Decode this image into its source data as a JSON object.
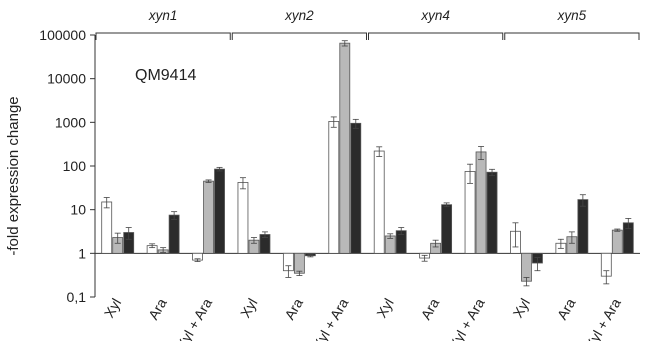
{
  "chart_data": {
    "type": "bar",
    "title": "",
    "ylabel": "-fold expression change",
    "xlabel": "",
    "yscale": "log",
    "ylim": [
      0.1,
      100000
    ],
    "yticks": [
      {
        "value": 0.1,
        "label": "0,1"
      },
      {
        "value": 1,
        "label": "1"
      },
      {
        "value": 10,
        "label": "10"
      },
      {
        "value": 100,
        "label": "100"
      },
      {
        "value": 1000,
        "label": "1000"
      },
      {
        "value": 10000,
        "label": "10000"
      },
      {
        "value": 100000,
        "label": "100000"
      }
    ],
    "grid": false,
    "legend": "none",
    "annotation": "QM9414",
    "series_colors": [
      "#ffffff",
      "#b9b9b9",
      "#2b2b2b"
    ],
    "groups": [
      {
        "name": "xyn1",
        "categories": [
          {
            "label": "Xyl",
            "values": [
              15,
              2.3,
              3.0
            ],
            "errors": [
              4,
              0.6,
              0.9
            ]
          },
          {
            "label": "Ara",
            "values": [
              1.5,
              1.2,
              7.5
            ],
            "errors": [
              0.15,
              0.15,
              1.5
            ]
          },
          {
            "label": "Xyl + Ara",
            "values": [
              0.7,
              45,
              85
            ],
            "errors": [
              0.05,
              3,
              8
            ]
          }
        ]
      },
      {
        "name": "xyn2",
        "categories": [
          {
            "label": "Xyl",
            "values": [
              42,
              2.0,
              2.7
            ],
            "errors": [
              12,
              0.3,
              0.4
            ]
          },
          {
            "label": "Ara",
            "values": [
              0.4,
              0.35,
              0.88
            ],
            "errors": [
              0.12,
              0.04,
              0.05
            ]
          },
          {
            "label": "Xyl + Ara",
            "values": [
              1050,
              65000,
              950
            ],
            "errors": [
              280,
              9000,
              220
            ]
          }
        ]
      },
      {
        "name": "xyn4",
        "categories": [
          {
            "label": "Xyl",
            "values": [
              220,
              2.5,
              3.3
            ],
            "errors": [
              55,
              0.3,
              0.6
            ]
          },
          {
            "label": "Ara",
            "values": [
              0.78,
              1.7,
              13
            ],
            "errors": [
              0.12,
              0.3,
              1.3
            ]
          },
          {
            "label": "Xyl + Ara",
            "values": [
              75,
              210,
              72
            ],
            "errors": [
              35,
              70,
              12
            ]
          }
        ]
      },
      {
        "name": "xyn5",
        "categories": [
          {
            "label": "Xyl",
            "values": [
              3.2,
              0.23,
              0.6
            ],
            "errors": [
              1.8,
              0.05,
              0.2
            ]
          },
          {
            "label": "Ara",
            "values": [
              1.7,
              2.4,
              17
            ],
            "errors": [
              0.4,
              0.7,
              5
            ]
          },
          {
            "label": "Xyl + Ara",
            "values": [
              0.3,
              3.4,
              5.0
            ],
            "errors": [
              0.1,
              0.2,
              1.3
            ]
          }
        ]
      }
    ]
  }
}
